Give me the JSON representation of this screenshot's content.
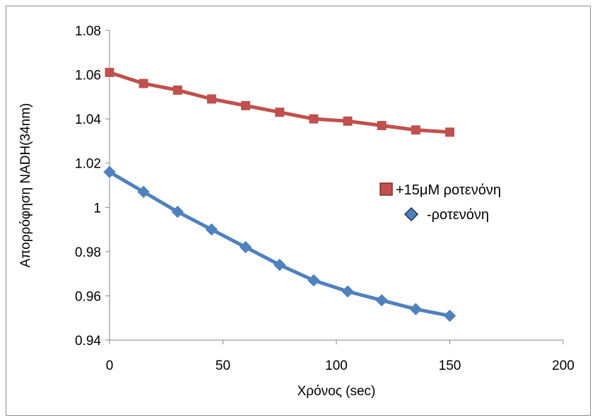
{
  "chart_data": {
    "type": "line",
    "xlabel": "Χρόνος (sec)",
    "ylabel": "Απορρόφηση NADH(34nm)",
    "xlim": [
      0,
      200
    ],
    "ylim": [
      0.94,
      1.08
    ],
    "x_ticks": [
      "0",
      "50",
      "100",
      "150",
      "200"
    ],
    "y_ticks": [
      "0.94",
      "0.96",
      "0.98",
      "1",
      "1.02",
      "1.04",
      "1.06",
      "1.08"
    ],
    "grid": false,
    "legend_position": "right",
    "x": [
      0,
      15,
      30,
      45,
      60,
      75,
      90,
      105,
      120,
      135,
      150
    ],
    "series": [
      {
        "name": "+15μM ροτενόνη",
        "marker": "square",
        "color": "#c0504d",
        "values": [
          1.061,
          1.056,
          1.053,
          1.049,
          1.046,
          1.043,
          1.04,
          1.039,
          1.037,
          1.035,
          1.034
        ]
      },
      {
        "name": "-ροτενόνη",
        "marker": "diamond",
        "color": "#4f81bd",
        "values": [
          1.016,
          1.007,
          0.998,
          0.99,
          0.982,
          0.974,
          0.967,
          0.962,
          0.958,
          0.954,
          0.951
        ]
      }
    ]
  }
}
